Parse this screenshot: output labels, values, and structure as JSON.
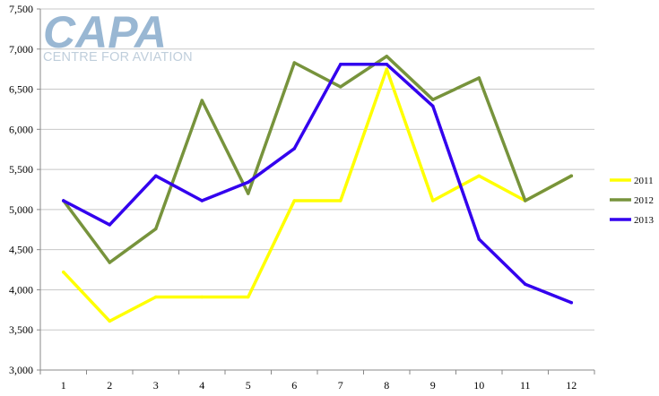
{
  "logo": {
    "main": "CAPA",
    "sub": "CENTRE FOR AVIATION"
  },
  "chart_data": {
    "type": "line",
    "x": [
      1,
      2,
      3,
      4,
      5,
      6,
      7,
      8,
      9,
      10,
      11,
      12
    ],
    "ylim": [
      3000,
      7500
    ],
    "yticks": [
      3000,
      3500,
      4000,
      4500,
      5000,
      5500,
      6000,
      6500,
      7000,
      7500
    ],
    "ytick_labels": [
      "3,000",
      "3,500",
      "4,000",
      "4,500",
      "5,000",
      "5,500",
      "6,000",
      "6,500",
      "7,000",
      "7,500"
    ],
    "grid": "horizontal",
    "legend_position": "right",
    "series": [
      {
        "name": "2011",
        "color": "#ffff00",
        "values": [
          4220,
          3610,
          3910,
          3910,
          3910,
          5110,
          5110,
          6750,
          5110,
          5420,
          5110,
          5420
        ]
      },
      {
        "name": "2012",
        "color": "#77933c",
        "values": [
          5110,
          4340,
          4760,
          6360,
          5200,
          6830,
          6530,
          6910,
          6370,
          6640,
          5110,
          5420
        ]
      },
      {
        "name": "2013",
        "color": "#3300ee",
        "values": [
          5110,
          4810,
          5420,
          5110,
          5340,
          5760,
          6810,
          6810,
          6290,
          4630,
          4070,
          3840
        ]
      }
    ]
  }
}
